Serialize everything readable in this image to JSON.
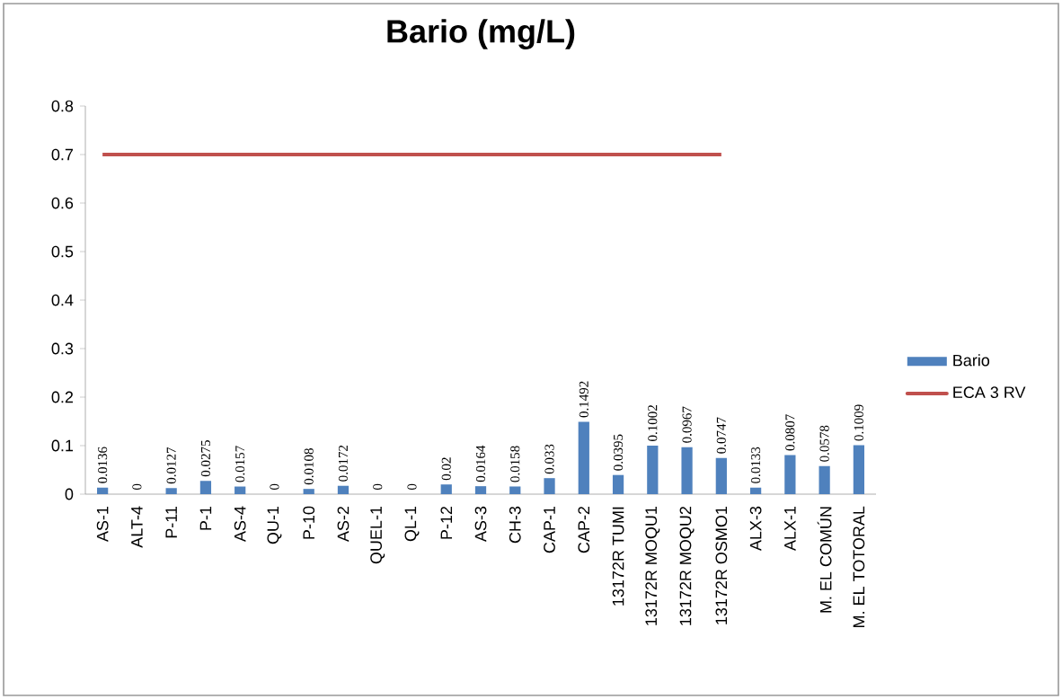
{
  "chart_data": {
    "type": "bar",
    "title": "Bario (mg/L)",
    "categories": [
      "AS-1",
      "ALT-4",
      "P-11",
      "P-1",
      "AS-4",
      "QU-1",
      "P-10",
      "AS-2",
      "QUEL-1",
      "QL-1",
      "P-12",
      "AS-3",
      "CH-3",
      "CAP-1",
      "CAP-2",
      "13172R TUMI",
      "13172R MOQU1",
      "13172R MOQU2",
      "13172R OSMO1",
      "ALX-3",
      "ALX-1",
      "M. EL COMÚN",
      "M. EL TOTORAL"
    ],
    "series": [
      {
        "name": "Bario",
        "color": "#4f81bd",
        "values": [
          0.0136,
          0,
          0.0127,
          0.0275,
          0.0157,
          0,
          0.0108,
          0.0172,
          0,
          0,
          0.02,
          0.0164,
          0.0158,
          0.033,
          0.1492,
          0.0395,
          0.1002,
          0.0967,
          0.0747,
          0.0133,
          0.0807,
          0.0578,
          0.1009
        ],
        "value_labels": [
          "0.0136",
          "0",
          "0.0127",
          "0.0275",
          "0.0157",
          "0",
          "0.0108",
          "0.0172",
          "0",
          "0",
          "0.02",
          "0.0164",
          "0.0158",
          "0.033",
          "0.1492",
          "0.0395",
          "0.1002",
          "0.0967",
          "0.0747",
          "0.0133",
          "0.0807",
          "0.0578",
          "0.1009"
        ]
      },
      {
        "name": "ECA 3 RV",
        "type": "line",
        "color": "#c0504d",
        "values": [
          0.7,
          0.7,
          0.7,
          0.7,
          0.7,
          0.7,
          0.7,
          0.7,
          0.7,
          0.7,
          0.7,
          0.7,
          0.7,
          0.7,
          0.7,
          0.7,
          0.7,
          0.7,
          0.7,
          null,
          null,
          null,
          null
        ]
      }
    ],
    "ylim": [
      0,
      0.8
    ],
    "yticks": [
      0,
      0.1,
      0.2,
      0.3,
      0.4,
      0.5,
      0.6,
      0.7,
      0.8
    ],
    "legend": "right",
    "grid": false
  }
}
